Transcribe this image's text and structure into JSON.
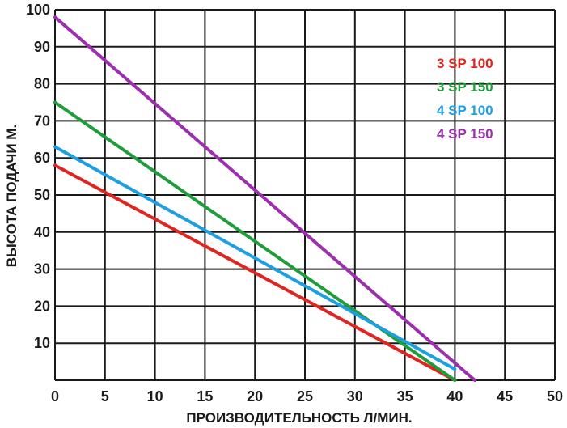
{
  "chart_data": {
    "type": "line",
    "xlabel": "ПРОИЗВОДИТЕЛЬНОСТЬ Л/МИН.",
    "ylabel": "ВЫСОТА ПОДАЧИ М.",
    "xlim": [
      0,
      50
    ],
    "ylim": [
      0,
      100
    ],
    "x_ticks": [
      "0",
      "5",
      "10",
      "15",
      "20",
      "25",
      "30",
      "35",
      "40",
      "45",
      "50"
    ],
    "y_ticks": [
      "10",
      "20",
      "30",
      "40",
      "50",
      "60",
      "70",
      "80",
      "90",
      "100"
    ],
    "grid": true,
    "legend_position": "top-right",
    "series": [
      {
        "name": "3 SP 100",
        "color": "#e0241f",
        "points": [
          [
            0,
            58
          ],
          [
            40,
            0
          ]
        ]
      },
      {
        "name": "3 SP 150",
        "color": "#1e9e3a",
        "points": [
          [
            0,
            75
          ],
          [
            40,
            0
          ]
        ]
      },
      {
        "name": "4 SP 100",
        "color": "#1d9fe0",
        "points": [
          [
            0,
            63
          ],
          [
            40,
            3
          ]
        ]
      },
      {
        "name": "4 SP 150",
        "color": "#9b2fae",
        "points": [
          [
            0,
            98
          ],
          [
            42,
            0
          ]
        ]
      }
    ]
  }
}
